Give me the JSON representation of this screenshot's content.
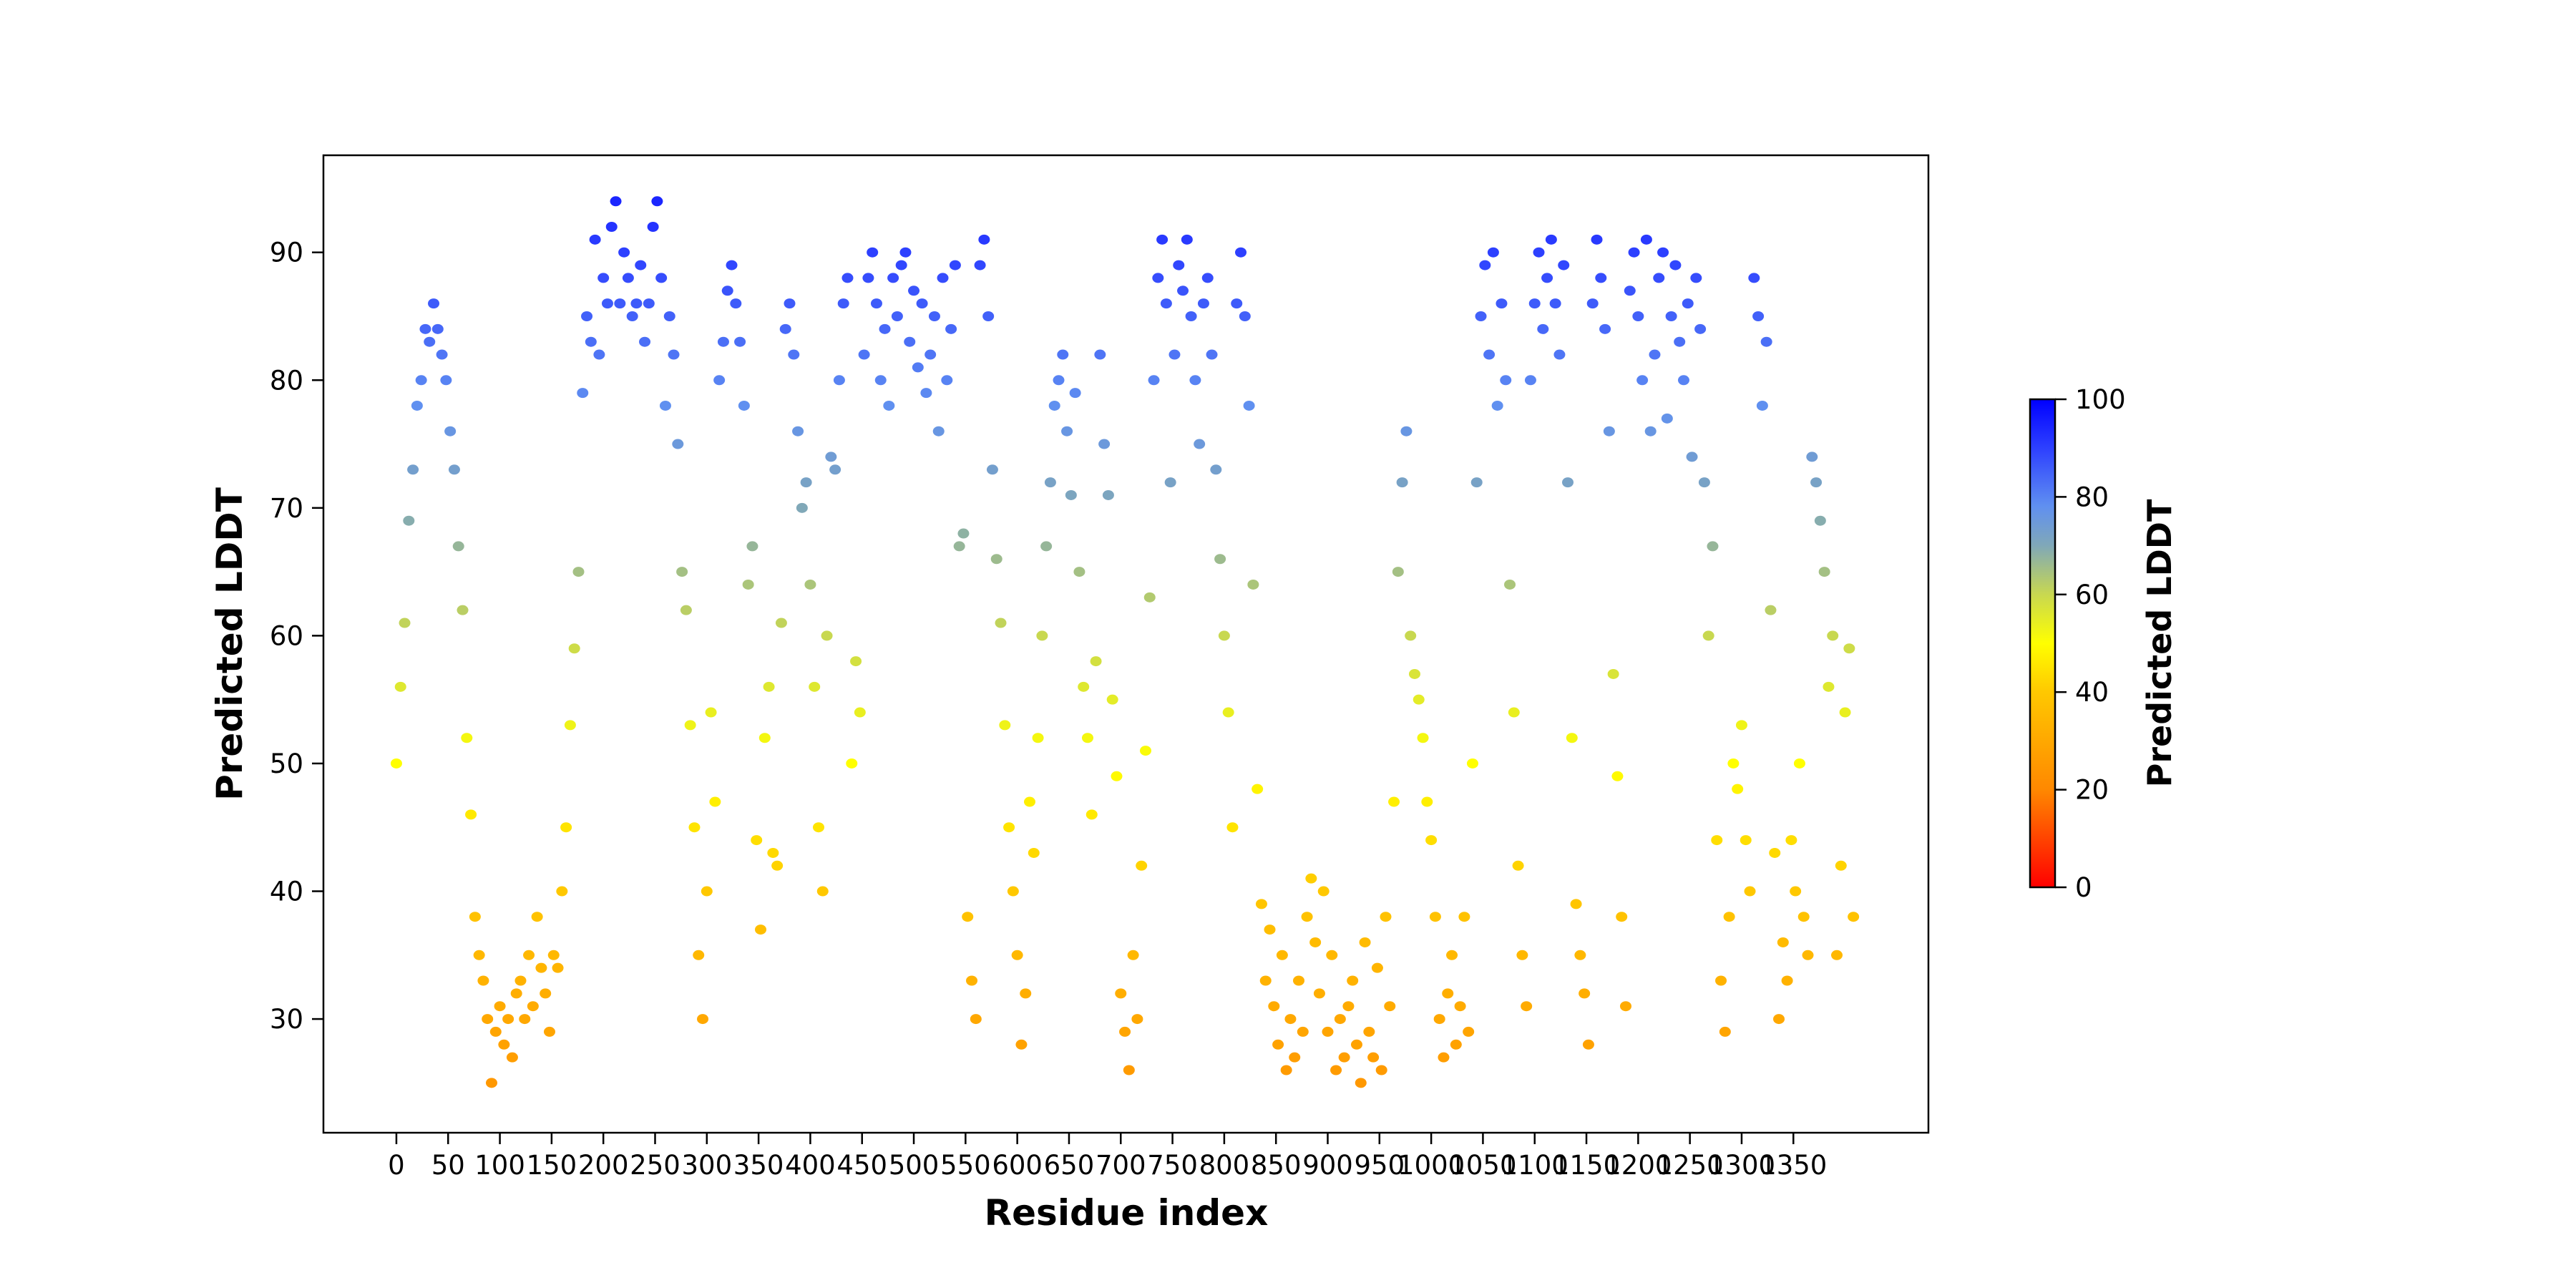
{
  "chart_data": {
    "type": "scatter",
    "title": "",
    "xlabel": "Residue index",
    "ylabel": "Predicted LDDT",
    "xlim": [
      -70.5,
      1480.5
    ],
    "ylim": [
      21.1,
      97.6
    ],
    "grid": false,
    "x_ticks": [
      0,
      50,
      100,
      150,
      200,
      250,
      300,
      350,
      400,
      450,
      500,
      550,
      600,
      650,
      700,
      750,
      800,
      850,
      900,
      950,
      1000,
      1050,
      1100,
      1150,
      1200,
      1250,
      1300,
      1350
    ],
    "y_ticks": [
      30,
      40,
      50,
      60,
      70,
      80,
      90
    ],
    "residue_start": 0,
    "residue_step": 4,
    "values": [
      50,
      56,
      61,
      69,
      73,
      78,
      80,
      84,
      83,
      86,
      84,
      82,
      80,
      76,
      73,
      67,
      62,
      52,
      46,
      38,
      35,
      33,
      30,
      25,
      29,
      31,
      28,
      30,
      27,
      32,
      33,
      30,
      35,
      31,
      38,
      34,
      32,
      29,
      35,
      34,
      40,
      45,
      53,
      59,
      65,
      79,
      85,
      83,
      91,
      82,
      88,
      86,
      92,
      94,
      86,
      90,
      88,
      85,
      86,
      89,
      83,
      86,
      92,
      94,
      88,
      78,
      85,
      82,
      75,
      65,
      62,
      53,
      45,
      35,
      30,
      40,
      54,
      47,
      80,
      83,
      87,
      89,
      86,
      83,
      78,
      64,
      67,
      44,
      37,
      52,
      56,
      43,
      42,
      61,
      84,
      86,
      82,
      76,
      70,
      72,
      64,
      56,
      45,
      40,
      60,
      74,
      73,
      80,
      86,
      88,
      50,
      58,
      54,
      82,
      88,
      90,
      86,
      80,
      84,
      78,
      88,
      85,
      89,
      90,
      83,
      87,
      81,
      86,
      79,
      82,
      85,
      76,
      88,
      80,
      84,
      89,
      67,
      68,
      38,
      33,
      30,
      89,
      91,
      85,
      73,
      66,
      61,
      53,
      45,
      40,
      35,
      28,
      32,
      47,
      43,
      52,
      60,
      67,
      72,
      78,
      80,
      82,
      76,
      71,
      79,
      65,
      56,
      52,
      46,
      58,
      82,
      75,
      71,
      55,
      49,
      32,
      29,
      26,
      35,
      30,
      42,
      51,
      63,
      80,
      88,
      91,
      86,
      72,
      82,
      89,
      87,
      91,
      85,
      80,
      75,
      86,
      88,
      82,
      73,
      66,
      60,
      54,
      45,
      86,
      90,
      85,
      78,
      64,
      48,
      39,
      33,
      37,
      31,
      28,
      35,
      26,
      30,
      27,
      33,
      29,
      38,
      41,
      36,
      32,
      40,
      29,
      35,
      26,
      30,
      27,
      31,
      33,
      28,
      25,
      36,
      29,
      27,
      34,
      26,
      38,
      31,
      47,
      65,
      72,
      76,
      60,
      57,
      55,
      52,
      47,
      44,
      38,
      30,
      27,
      32,
      35,
      28,
      31,
      38,
      29,
      50,
      72,
      85,
      89,
      82,
      90,
      78,
      86,
      80,
      64,
      54,
      42,
      35,
      31,
      80,
      86,
      90,
      84,
      88,
      91,
      86,
      82,
      89,
      72,
      52,
      39,
      35,
      32,
      28,
      86,
      91,
      88,
      84,
      76,
      57,
      49,
      38,
      31,
      87,
      90,
      85,
      80,
      91,
      76,
      82,
      88,
      90,
      77,
      85,
      89,
      83,
      80,
      86,
      74,
      88,
      84,
      72,
      60,
      67,
      44,
      33,
      29,
      38,
      50,
      48,
      53,
      44,
      40,
      88,
      85,
      78,
      83,
      62,
      43,
      30,
      36,
      33,
      44,
      40,
      50,
      38,
      35,
      74,
      72,
      69,
      65,
      56,
      60,
      35,
      42,
      54,
      59,
      38
    ],
    "colorbar": {
      "label": "Predicted LDDT",
      "range": [
        0,
        100
      ],
      "ticks": [
        0,
        20,
        40,
        60,
        80,
        100
      ],
      "colormap": [
        {
          "value": 0,
          "color": "#ff0000"
        },
        {
          "value": 20,
          "color": "#ff8800"
        },
        {
          "value": 40,
          "color": "#ffc800"
        },
        {
          "value": 50,
          "color": "#ffff00"
        },
        {
          "value": 60,
          "color": "#c8d850"
        },
        {
          "value": 70,
          "color": "#80a8b8"
        },
        {
          "value": 78,
          "color": "#6090f0"
        },
        {
          "value": 90,
          "color": "#2d40ff"
        },
        {
          "value": 100,
          "color": "#0000ff"
        }
      ]
    }
  }
}
